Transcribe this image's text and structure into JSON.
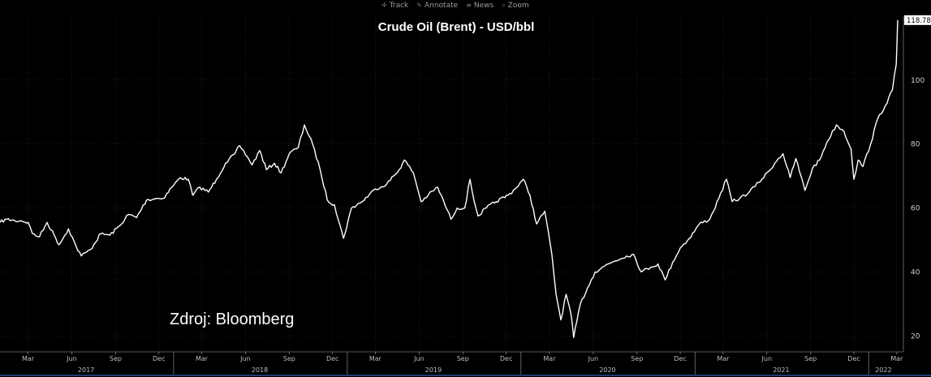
{
  "toolbar": {
    "items": [
      {
        "label": "Track",
        "icon": "crosshair-icon"
      },
      {
        "label": "Annotate",
        "icon": "pencil-icon"
      },
      {
        "label": "News",
        "icon": "news-icon"
      },
      {
        "label": "Zoom",
        "icon": "zoom-icon"
      }
    ]
  },
  "source_text": "Zdroj: Bloomberg",
  "colors": {
    "background": "#000000",
    "line": "#ffffff",
    "grid": "#2e2e2e"
  },
  "chart_data": {
    "type": "line",
    "title": "Crude Oil (Brent) - USD/bbl",
    "xlabel": "",
    "ylabel": "",
    "ylim": [
      15,
      120
    ],
    "xlim": [
      "2017-01-01",
      "2022-03-15"
    ],
    "yticks": [
      20,
      40,
      60,
      80,
      100
    ],
    "grid": true,
    "last_value_label": "118.78",
    "x_month_ticks": [
      {
        "date": "2017-03-01",
        "label": "Mar"
      },
      {
        "date": "2017-06-01",
        "label": "Jun"
      },
      {
        "date": "2017-09-01",
        "label": "Sep"
      },
      {
        "date": "2017-12-01",
        "label": "Dec"
      },
      {
        "date": "2018-03-01",
        "label": "Mar"
      },
      {
        "date": "2018-06-01",
        "label": "Jun"
      },
      {
        "date": "2018-09-01",
        "label": "Sep"
      },
      {
        "date": "2018-12-01",
        "label": "Dec"
      },
      {
        "date": "2019-03-01",
        "label": "Mar"
      },
      {
        "date": "2019-06-01",
        "label": "Jun"
      },
      {
        "date": "2019-09-01",
        "label": "Sep"
      },
      {
        "date": "2019-12-01",
        "label": "Dec"
      },
      {
        "date": "2020-03-01",
        "label": "Mar"
      },
      {
        "date": "2020-06-01",
        "label": "Jun"
      },
      {
        "date": "2020-09-01",
        "label": "Sep"
      },
      {
        "date": "2020-12-01",
        "label": "Dec"
      },
      {
        "date": "2021-03-01",
        "label": "Mar"
      },
      {
        "date": "2021-06-01",
        "label": "Jun"
      },
      {
        "date": "2021-09-01",
        "label": "Sep"
      },
      {
        "date": "2021-12-01",
        "label": "Dec"
      },
      {
        "date": "2022-03-01",
        "label": "Mar"
      }
    ],
    "x_year_ticks": [
      {
        "date": "2017-07-01",
        "label": "2017"
      },
      {
        "date": "2018-07-01",
        "label": "2018"
      },
      {
        "date": "2019-07-01",
        "label": "2019"
      },
      {
        "date": "2020-07-01",
        "label": "2020"
      },
      {
        "date": "2021-07-01",
        "label": "2021"
      },
      {
        "date": "2022-02-01",
        "label": "2022"
      }
    ],
    "series": [
      {
        "name": "",
        "points": [
          [
            "2017-01-01",
            55.5
          ],
          [
            "2017-01-15",
            56.5
          ],
          [
            "2017-02-01",
            56
          ],
          [
            "2017-02-15",
            56
          ],
          [
            "2017-03-01",
            55.5
          ],
          [
            "2017-03-10",
            52
          ],
          [
            "2017-03-25",
            51
          ],
          [
            "2017-04-10",
            55.5
          ],
          [
            "2017-04-25",
            51.5
          ],
          [
            "2017-05-05",
            48.5
          ],
          [
            "2017-05-25",
            53.5
          ],
          [
            "2017-06-10",
            48
          ],
          [
            "2017-06-21",
            45
          ],
          [
            "2017-07-10",
            47
          ],
          [
            "2017-08-01",
            52
          ],
          [
            "2017-08-20",
            51.5
          ],
          [
            "2017-09-10",
            54.5
          ],
          [
            "2017-09-28",
            58
          ],
          [
            "2017-10-15",
            57
          ],
          [
            "2017-11-05",
            62.5
          ],
          [
            "2017-11-25",
            63
          ],
          [
            "2017-12-10",
            63
          ],
          [
            "2017-12-28",
            66.5
          ],
          [
            "2018-01-15",
            69.5
          ],
          [
            "2018-02-01",
            69
          ],
          [
            "2018-02-10",
            64
          ],
          [
            "2018-02-25",
            66.5
          ],
          [
            "2018-03-15",
            65
          ],
          [
            "2018-04-01",
            69
          ],
          [
            "2018-04-20",
            74
          ],
          [
            "2018-05-10",
            77
          ],
          [
            "2018-05-20",
            79.5
          ],
          [
            "2018-06-05",
            76
          ],
          [
            "2018-06-15",
            73.5
          ],
          [
            "2018-07-01",
            78
          ],
          [
            "2018-07-15",
            72
          ],
          [
            "2018-08-01",
            74
          ],
          [
            "2018-08-15",
            71
          ],
          [
            "2018-09-01",
            77
          ],
          [
            "2018-09-20",
            79
          ],
          [
            "2018-10-03",
            86
          ],
          [
            "2018-10-20",
            80
          ],
          [
            "2018-11-05",
            72
          ],
          [
            "2018-11-20",
            62.5
          ],
          [
            "2018-12-05",
            61
          ],
          [
            "2018-12-24",
            50.5
          ],
          [
            "2019-01-10",
            60
          ],
          [
            "2019-02-01",
            62
          ],
          [
            "2019-03-01",
            66
          ],
          [
            "2019-03-25",
            67.5
          ],
          [
            "2019-04-20",
            72
          ],
          [
            "2019-05-01",
            75
          ],
          [
            "2019-05-20",
            71
          ],
          [
            "2019-06-05",
            62
          ],
          [
            "2019-06-20",
            64
          ],
          [
            "2019-07-10",
            66.5
          ],
          [
            "2019-08-07",
            56.5
          ],
          [
            "2019-08-20",
            60
          ],
          [
            "2019-09-05",
            60
          ],
          [
            "2019-09-16",
            69
          ],
          [
            "2019-09-25",
            62
          ],
          [
            "2019-10-03",
            57.5
          ],
          [
            "2019-10-20",
            60
          ],
          [
            "2019-11-10",
            62
          ],
          [
            "2019-12-05",
            64
          ],
          [
            "2019-12-20",
            66
          ],
          [
            "2020-01-06",
            69
          ],
          [
            "2020-01-20",
            64
          ],
          [
            "2020-02-03",
            55
          ],
          [
            "2020-02-20",
            59
          ],
          [
            "2020-03-06",
            45.5
          ],
          [
            "2020-03-15",
            33
          ],
          [
            "2020-03-25",
            25
          ],
          [
            "2020-04-05",
            33
          ],
          [
            "2020-04-15",
            27
          ],
          [
            "2020-04-21",
            19.5
          ],
          [
            "2020-05-05",
            30
          ],
          [
            "2020-05-20",
            35
          ],
          [
            "2020-06-05",
            40
          ],
          [
            "2020-06-20",
            41.5
          ],
          [
            "2020-07-10",
            43
          ],
          [
            "2020-08-10",
            45
          ],
          [
            "2020-08-25",
            45.5
          ],
          [
            "2020-09-10",
            40
          ],
          [
            "2020-09-30",
            41.5
          ],
          [
            "2020-10-15",
            42.5
          ],
          [
            "2020-10-30",
            37.5
          ],
          [
            "2020-11-15",
            43
          ],
          [
            "2020-12-01",
            47.5
          ],
          [
            "2020-12-20",
            50.5
          ],
          [
            "2021-01-10",
            55
          ],
          [
            "2021-02-01",
            56.5
          ],
          [
            "2021-02-20",
            63
          ],
          [
            "2021-03-08",
            69
          ],
          [
            "2021-03-20",
            62
          ],
          [
            "2021-04-05",
            63
          ],
          [
            "2021-04-25",
            65
          ],
          [
            "2021-05-15",
            68
          ],
          [
            "2021-06-05",
            71.5
          ],
          [
            "2021-06-25",
            75.5
          ],
          [
            "2021-07-05",
            77
          ],
          [
            "2021-07-20",
            69.5
          ],
          [
            "2021-08-01",
            75.5
          ],
          [
            "2021-08-20",
            65.5
          ],
          [
            "2021-09-05",
            72.5
          ],
          [
            "2021-09-20",
            75
          ],
          [
            "2021-10-05",
            80.5
          ],
          [
            "2021-10-25",
            86
          ],
          [
            "2021-11-10",
            84
          ],
          [
            "2021-11-25",
            78.5
          ],
          [
            "2021-12-01",
            69
          ],
          [
            "2021-12-10",
            75
          ],
          [
            "2021-12-20",
            73
          ],
          [
            "2022-01-05",
            80
          ],
          [
            "2022-01-20",
            88
          ],
          [
            "2022-02-05",
            92
          ],
          [
            "2022-02-20",
            97
          ],
          [
            "2022-02-28",
            105
          ],
          [
            "2022-03-03",
            118.78
          ]
        ]
      }
    ]
  }
}
